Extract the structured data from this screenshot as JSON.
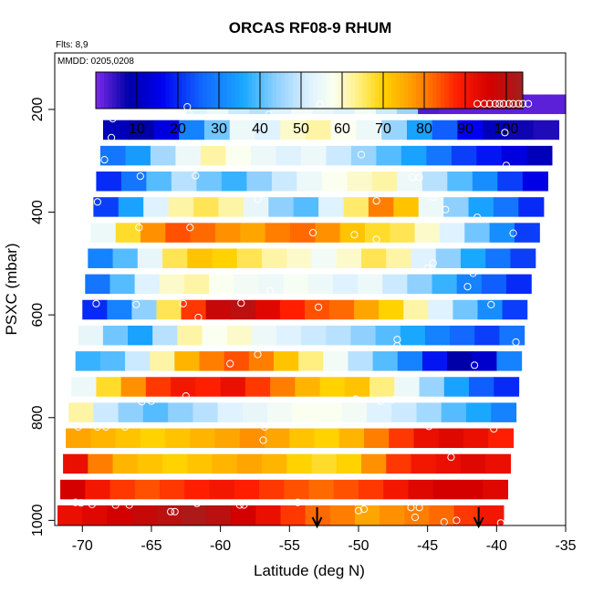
{
  "chart_data": {
    "type": "heatmap",
    "title": "ORCAS RF08-9 RHUM",
    "flights_note": "Flts: 8,9",
    "date_note": "MMDD: 0205,0208",
    "xlabel": "Latitude (deg N)",
    "ylabel": "PSXC (mbar)",
    "xlim": [
      -72,
      -35
    ],
    "ylim": [
      1010,
      90
    ],
    "y_inverted": true,
    "x_ticks": [
      -70,
      -65,
      -60,
      -55,
      -50,
      -45,
      -40,
      -35
    ],
    "x_tick_labels": [
      "-70",
      "-65",
      "-60",
      "-55",
      "-50",
      "-45",
      "-40",
      "-35"
    ],
    "y_ticks": [
      200,
      400,
      600,
      800,
      1000
    ],
    "y_tick_labels": [
      "200",
      "400",
      "600",
      "800",
      "1000"
    ],
    "colorbar": {
      "range": [
        0,
        104
      ],
      "ticks": [
        10,
        20,
        30,
        40,
        50,
        60,
        70,
        80,
        90,
        100
      ],
      "tick_labels": [
        "10",
        "20",
        "30",
        "40",
        "50",
        "60",
        "70",
        "80",
        "90",
        "100"
      ],
      "stops": [
        {
          "v": 0,
          "c": "#7b2be8"
        },
        {
          "v": 8,
          "c": "#0000a8"
        },
        {
          "v": 16,
          "c": "#0000f0"
        },
        {
          "v": 26,
          "c": "#1268ff"
        },
        {
          "v": 36,
          "c": "#1aa8ff"
        },
        {
          "v": 44,
          "c": "#8fd0ff"
        },
        {
          "v": 52,
          "c": "#dff2ff"
        },
        {
          "v": 58,
          "c": "#fbfff0"
        },
        {
          "v": 64,
          "c": "#ffef80"
        },
        {
          "v": 70,
          "c": "#ffd200"
        },
        {
          "v": 76,
          "c": "#ffa500"
        },
        {
          "v": 82,
          "c": "#ff6a00"
        },
        {
          "v": 88,
          "c": "#ff1e00"
        },
        {
          "v": 96,
          "c": "#d40000"
        },
        {
          "v": 104,
          "c": "#a02020"
        }
      ]
    },
    "layers": [
      {
        "p": 190,
        "lat_start": -62.5,
        "lat_end": -35,
        "values": [
          52,
          55,
          50,
          48,
          52,
          56,
          54,
          52,
          56,
          50,
          45,
          3,
          2,
          2,
          2,
          2,
          2,
          2
        ]
      },
      {
        "p": 240,
        "lat_start": -68.5,
        "lat_end": -35.5,
        "values": [
          10,
          8,
          14,
          30,
          42,
          55,
          52,
          60,
          62,
          58,
          55,
          45,
          35,
          25,
          16,
          10,
          7,
          6
        ]
      },
      {
        "p": 290,
        "lat_start": -68.7,
        "lat_end": -36,
        "values": [
          28,
          34,
          46,
          55,
          62,
          58,
          55,
          52,
          55,
          50,
          45,
          40,
          35,
          28,
          22,
          18,
          14,
          10
        ]
      },
      {
        "p": 340,
        "lat_start": -69,
        "lat_end": -36.3,
        "values": [
          20,
          28,
          40,
          48,
          42,
          38,
          44,
          50,
          55,
          58,
          60,
          62,
          55,
          48,
          40,
          32,
          22,
          15
        ]
      },
      {
        "p": 390,
        "lat_start": -69.2,
        "lat_end": -36.6,
        "values": [
          22,
          35,
          52,
          62,
          66,
          62,
          54,
          44,
          40,
          52,
          65,
          80,
          72,
          55,
          44,
          35,
          28,
          20
        ]
      },
      {
        "p": 440,
        "lat_start": -69.4,
        "lat_end": -36.9,
        "values": [
          55,
          68,
          78,
          84,
          82,
          78,
          76,
          80,
          82,
          78,
          72,
          68,
          66,
          60,
          52,
          42,
          32,
          22
        ]
      },
      {
        "p": 490,
        "lat_start": -69.6,
        "lat_end": -37.2,
        "values": [
          30,
          40,
          54,
          66,
          72,
          70,
          66,
          62,
          60,
          56,
          60,
          66,
          62,
          52,
          44,
          36,
          28,
          22
        ]
      },
      {
        "p": 540,
        "lat_start": -69.8,
        "lat_end": -37.5,
        "values": [
          28,
          40,
          52,
          60,
          62,
          58,
          56,
          55,
          57,
          55,
          52,
          55,
          50,
          44,
          38,
          30,
          25,
          20
        ]
      },
      {
        "p": 590,
        "lat_start": -70,
        "lat_end": -37.8,
        "values": [
          20,
          30,
          44,
          66,
          86,
          98,
          100,
          94,
          88,
          84,
          82,
          76,
          70,
          62,
          52,
          42,
          32,
          22
        ]
      },
      {
        "p": 640,
        "lat_start": -70.3,
        "lat_end": -38,
        "values": [
          54,
          42,
          35,
          48,
          62,
          58,
          60,
          55,
          52,
          50,
          48,
          44,
          40,
          36,
          30,
          26,
          22,
          28
        ]
      },
      {
        "p": 690,
        "lat_start": -70.5,
        "lat_end": -38.2,
        "values": [
          38,
          40,
          50,
          62,
          74,
          80,
          84,
          80,
          72,
          64,
          56,
          48,
          40,
          30,
          18,
          8,
          12,
          30
        ]
      },
      {
        "p": 740,
        "lat_start": -70.8,
        "lat_end": -38.4,
        "values": [
          55,
          68,
          78,
          86,
          90,
          88,
          92,
          86,
          80,
          74,
          70,
          72,
          64,
          55,
          45,
          35,
          25,
          20
        ]
      },
      {
        "p": 790,
        "lat_start": -71,
        "lat_end": -38.6,
        "values": [
          62,
          50,
          44,
          40,
          44,
          48,
          52,
          54,
          56,
          58,
          58,
          56,
          52,
          50,
          46,
          40,
          36,
          30
        ]
      },
      {
        "p": 840,
        "lat_start": -71.2,
        "lat_end": -38.8,
        "values": [
          76,
          74,
          72,
          70,
          72,
          74,
          76,
          78,
          76,
          72,
          70,
          74,
          80,
          86,
          92,
          94,
          92,
          88
        ]
      },
      {
        "p": 890,
        "lat_start": -71.4,
        "lat_end": -39,
        "values": [
          92,
          80,
          74,
          72,
          70,
          72,
          74,
          76,
          74,
          70,
          68,
          70,
          78,
          86,
          90,
          92,
          94,
          92
        ]
      },
      {
        "p": 940,
        "lat_start": -71.6,
        "lat_end": -39.2,
        "values": [
          96,
          90,
          86,
          84,
          86,
          88,
          90,
          88,
          86,
          84,
          82,
          84,
          86,
          90,
          94,
          96,
          96,
          94
        ]
      },
      {
        "p": 990,
        "lat_start": -71.8,
        "lat_end": -39.5,
        "values": [
          92,
          94,
          96,
          98,
          100,
          102,
          100,
          96,
          92,
          86,
          82,
          80,
          76,
          78,
          80,
          82,
          86,
          90
        ]
      }
    ],
    "points": [
      [
        -41.4,
        189
      ],
      [
        -40.9,
        189
      ],
      [
        -40.5,
        189
      ],
      [
        -40.1,
        189
      ],
      [
        -39.8,
        189
      ],
      [
        -39.5,
        189
      ],
      [
        -39.1,
        189
      ],
      [
        -38.8,
        189
      ],
      [
        -38.4,
        189
      ],
      [
        -38.1,
        189
      ],
      [
        -37.7,
        189
      ],
      [
        -62.4,
        195
      ],
      [
        -62.3,
        208
      ],
      [
        -67.8,
        218
      ],
      [
        -56.5,
        210
      ],
      [
        -52.8,
        190
      ],
      [
        -50.6,
        216
      ],
      [
        -39.4,
        245
      ],
      [
        -67.9,
        255
      ],
      [
        -68.4,
        298
      ],
      [
        -65.8,
        330
      ],
      [
        -61.8,
        329
      ],
      [
        -49.8,
        288
      ],
      [
        -39.3,
        309
      ],
      [
        -68.9,
        380
      ],
      [
        -57.3,
        375
      ],
      [
        -46.1,
        332
      ],
      [
        -45.6,
        332
      ],
      [
        -48.7,
        378
      ],
      [
        -44.6,
        371
      ],
      [
        -43.7,
        395
      ],
      [
        -41.4,
        410
      ],
      [
        -65.9,
        430
      ],
      [
        -62.2,
        430
      ],
      [
        -53.3,
        440
      ],
      [
        -50.3,
        444
      ],
      [
        -48.7,
        453
      ],
      [
        -38.8,
        441
      ],
      [
        -44.6,
        499
      ],
      [
        -45.0,
        509
      ],
      [
        -41.7,
        519
      ],
      [
        -42.1,
        545
      ],
      [
        -69.0,
        578
      ],
      [
        -70.3,
        580
      ],
      [
        -70.6,
        578
      ],
      [
        -66.1,
        580
      ],
      [
        -62.7,
        578
      ],
      [
        -61.6,
        605
      ],
      [
        -58.5,
        577
      ],
      [
        -56.4,
        553
      ],
      [
        -52.9,
        585
      ],
      [
        -40.4,
        580
      ],
      [
        -37.4,
        576
      ],
      [
        -47.2,
        648
      ],
      [
        -47.2,
        660
      ],
      [
        -38.6,
        653
      ],
      [
        -59.3,
        695
      ],
      [
        -57.3,
        677
      ],
      [
        -41.6,
        698
      ],
      [
        -38.1,
        756
      ],
      [
        -65.7,
        769
      ],
      [
        -62.5,
        758
      ],
      [
        -65.0,
        768
      ],
      [
        -50.2,
        764
      ],
      [
        -48.4,
        768
      ],
      [
        -47.5,
        765
      ],
      [
        -44.9,
        817
      ],
      [
        -37.6,
        805
      ],
      [
        -70.3,
        818
      ],
      [
        -68.9,
        818
      ],
      [
        -68.3,
        818
      ],
      [
        -66.9,
        818
      ],
      [
        -56.8,
        818
      ],
      [
        -56.9,
        844
      ],
      [
        -43.3,
        877
      ],
      [
        -40.2,
        822
      ],
      [
        -70.5,
        965
      ],
      [
        -70.1,
        966
      ],
      [
        -69.3,
        969
      ],
      [
        -67.6,
        970
      ],
      [
        -66.6,
        970
      ],
      [
        -63.6,
        983
      ],
      [
        -63.3,
        983
      ],
      [
        -61.7,
        967
      ],
      [
        -58.6,
        970
      ],
      [
        -58.3,
        970
      ],
      [
        -54.4,
        965
      ],
      [
        -50.0,
        981
      ],
      [
        -49.6,
        978
      ],
      [
        -46.2,
        975
      ],
      [
        -45.6,
        975
      ],
      [
        -45.9,
        994
      ],
      [
        -42.9,
        1000
      ],
      [
        -43.8,
        1003
      ],
      [
        -39.7,
        1005
      ]
    ],
    "markers": [
      {
        "x": -53,
        "type": "down-arrow"
      },
      {
        "x": -41.3,
        "type": "down-arrow"
      }
    ]
  }
}
